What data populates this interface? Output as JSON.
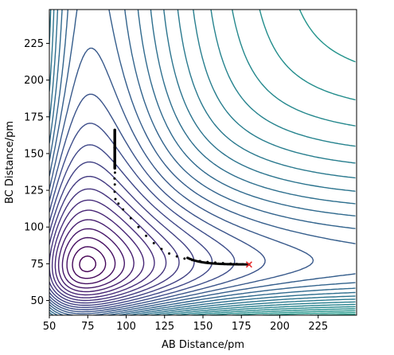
{
  "chart_data": {
    "type": "contour",
    "title": "",
    "xlabel": "AB Distance/pm",
    "ylabel": "BC Distance/pm",
    "xlim": [
      50,
      250
    ],
    "ylim": [
      40,
      248
    ],
    "xticks": [
      50,
      75,
      100,
      125,
      150,
      175,
      200,
      225
    ],
    "yticks": [
      50,
      75,
      100,
      125,
      150,
      175,
      200,
      225
    ],
    "colormap": "viridis",
    "grid": false,
    "legend": "none",
    "series": [
      {
        "type": "trajectory",
        "x": [
          92.5,
          92.5,
          92.6,
          92.5,
          92.4,
          92.6,
          92.5,
          92.4,
          92.5,
          92.7,
          92.4,
          92.6,
          92.5,
          93.0,
          95.0,
          98.0,
          103.0,
          108.0,
          113.0,
          118.0,
          123.0,
          128.0,
          133.0,
          138.0,
          143.0,
          148.0,
          153.0,
          158.0,
          163.0,
          168.0,
          172.0,
          176.0,
          180.0
        ],
        "y": [
          166.0,
          163.0,
          160.0,
          157.0,
          154.0,
          151.0,
          148.0,
          145.0,
          141.0,
          137.0,
          133.0,
          129.0,
          124.0,
          119.0,
          116.0,
          112.0,
          106.0,
          100.0,
          94.0,
          89.0,
          85.0,
          82.0,
          80.0,
          78.5,
          77.5,
          76.8,
          76.2,
          75.8,
          75.4,
          75.1,
          74.9,
          74.7,
          74.5
        ]
      }
    ],
    "end_marker": {
      "x": 180.0,
      "y": 74.5,
      "color": "#e8292a",
      "symbol": "x"
    }
  }
}
